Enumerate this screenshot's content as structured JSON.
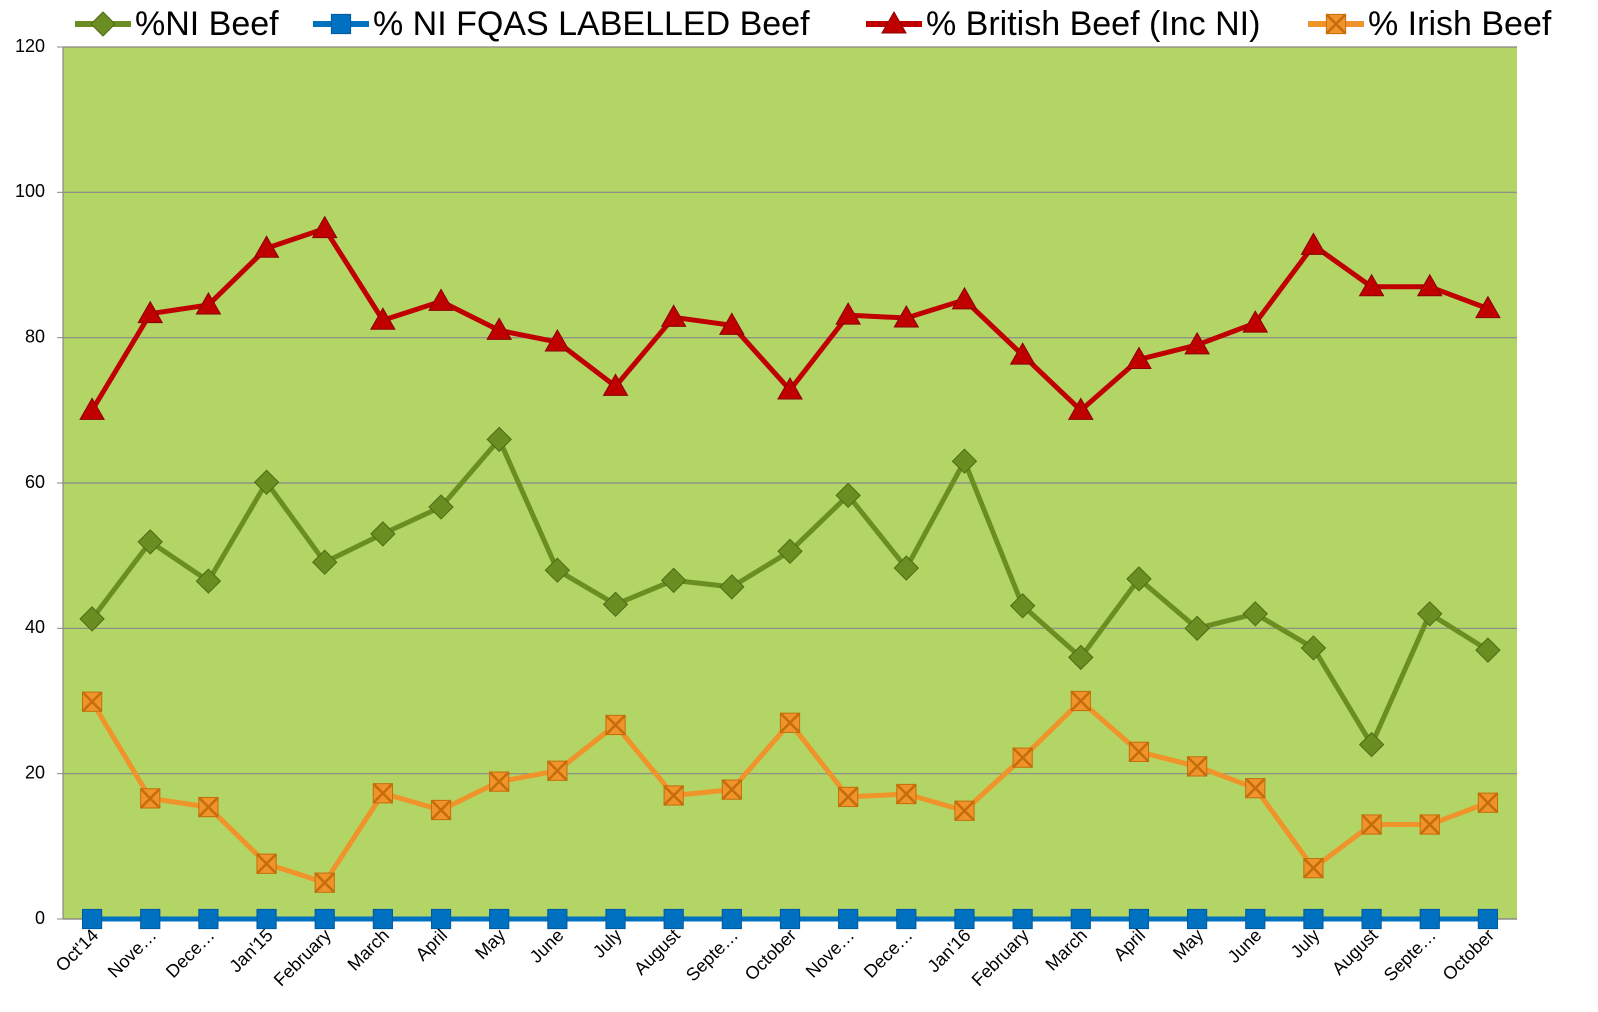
{
  "chart_data": {
    "type": "line",
    "categories": [
      "Oct'14",
      "Nove…",
      "Dece…",
      "Jan'15",
      "February",
      "March",
      "April",
      "May",
      "June",
      "July",
      "August",
      "Septe…",
      "October",
      "Nove…",
      "Dece…",
      "Jan'16",
      "February",
      "March",
      "April",
      "May",
      "June",
      "July",
      "August",
      "Septe…",
      "October"
    ],
    "series": [
      {
        "name": "%NI Beef",
        "color": "#6b8e23",
        "marker": "diamond",
        "values": [
          41.3,
          51.9,
          46.5,
          60.1,
          49.1,
          53,
          56.7,
          66,
          48,
          43.3,
          46.6,
          45.7,
          50.6,
          58.3,
          48.3,
          63,
          43.1,
          36,
          46.8,
          40,
          42,
          37.3,
          24,
          42,
          37
        ]
      },
      {
        "name": "% NI FQAS LABELLED Beef",
        "color": "#0070c0",
        "marker": "square",
        "values": [
          0,
          0,
          0,
          0,
          0,
          0,
          0,
          0,
          0,
          0,
          0,
          0,
          0,
          0,
          0,
          0,
          0,
          0,
          0,
          0,
          0,
          0,
          0,
          0,
          0
        ]
      },
      {
        "name": "% British Beef (Inc NI)",
        "color": "#c00000",
        "marker": "triangle",
        "values": [
          70,
          83.3,
          84.5,
          92.3,
          95,
          82.4,
          85,
          81,
          79.4,
          73.3,
          82.8,
          81.7,
          72.8,
          83.1,
          82.7,
          85.2,
          77.6,
          70,
          77,
          79,
          82,
          92.7,
          87,
          87,
          84
        ]
      },
      {
        "name": "% Irish Beef",
        "color": "#f0932b",
        "marker": "x-square",
        "values": [
          29.9,
          16.6,
          15.4,
          7.6,
          5,
          17.3,
          15,
          18.9,
          20.4,
          26.7,
          17,
          17.8,
          27,
          16.8,
          17.2,
          14.9,
          22.2,
          30,
          23,
          21,
          18,
          7,
          13,
          13,
          16
        ]
      }
    ],
    "ylim": [
      0,
      120
    ],
    "yticks": [
      0,
      20,
      40,
      60,
      80,
      100,
      120
    ],
    "grid": true,
    "background": "#b2d565",
    "legend": "top"
  }
}
